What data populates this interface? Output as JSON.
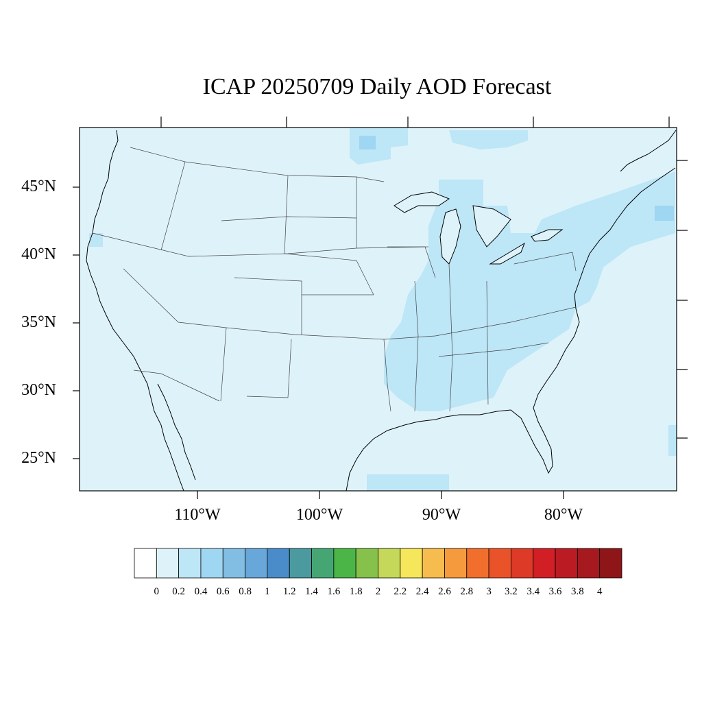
{
  "title": "ICAP 20250709 Daily AOD Forecast",
  "map": {
    "projection": "cylindrical-equidistant",
    "lat_labels": [
      "45°N",
      "40°N",
      "35°N",
      "30°N",
      "25°N"
    ],
    "lon_labels": [
      "110°W",
      "100°W",
      "90°W",
      "80°W"
    ],
    "background_color": "#def2fa",
    "aod_level": "0-0.2 over most of domain, 0.2-0.4 over eastern US and Atlantic plume"
  },
  "colorbar": {
    "labels": [
      "0",
      "0.2",
      "0.4",
      "0.6",
      "0.8",
      "1",
      "1.2",
      "1.4",
      "1.6",
      "1.8",
      "2",
      "2.2",
      "2.4",
      "2.6",
      "2.8",
      "3",
      "3.2",
      "3.4",
      "3.6",
      "3.8",
      "4"
    ],
    "colors": [
      "#ffffff",
      "#def2fa",
      "#bde6f7",
      "#9fd6f2",
      "#82bde3",
      "#67a7d9",
      "#4a8cc9",
      "#4a9aa0",
      "#45a674",
      "#4cb548",
      "#86c24b",
      "#c5d85a",
      "#f6e65b",
      "#f6bc4d",
      "#f59a3d",
      "#f16e2c",
      "#ea5329",
      "#dd3b27",
      "#d21f26",
      "#bb1b23",
      "#a5191f",
      "#8e1618"
    ]
  }
}
